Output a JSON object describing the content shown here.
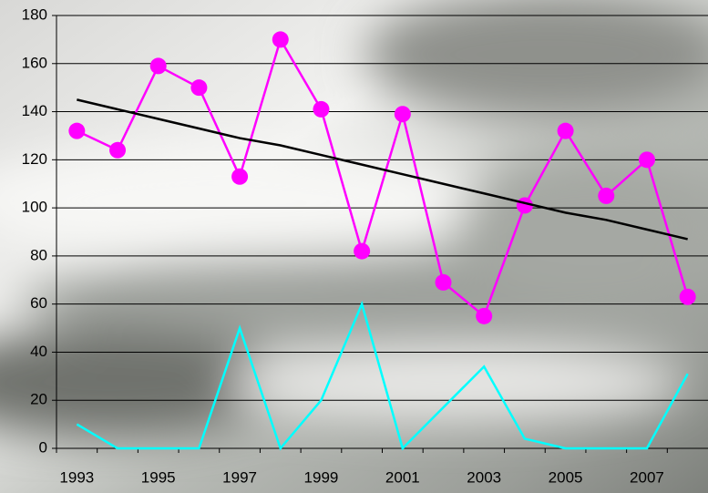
{
  "chart_data": {
    "type": "line",
    "categories": [
      "1993",
      null,
      "1995",
      null,
      "1997",
      null,
      "1999",
      null,
      "2001",
      null,
      "2003",
      null,
      "2005",
      null,
      "2007",
      null
    ],
    "series": [
      {
        "color": "#ff00ff",
        "markers": true,
        "values": [
          132,
          124,
          159,
          150,
          113,
          170,
          141,
          82,
          139,
          69,
          55,
          101,
          132,
          105,
          120,
          63
        ]
      },
      {
        "color": "#000000",
        "markers": false,
        "values": [
          145,
          141,
          137,
          133,
          129,
          126,
          122,
          118,
          114,
          110,
          106,
          102,
          98,
          95,
          91,
          87
        ]
      },
      {
        "color": "#00ffff",
        "markers": false,
        "values": [
          10,
          0,
          0,
          0,
          50,
          0,
          20,
          60,
          0,
          17,
          34,
          4,
          0,
          0,
          0,
          31
        ]
      }
    ],
    "ylim": [
      0,
      180
    ],
    "yticks": [
      0,
      20,
      40,
      60,
      80,
      100,
      120,
      140,
      160,
      180
    ],
    "grid": true
  }
}
